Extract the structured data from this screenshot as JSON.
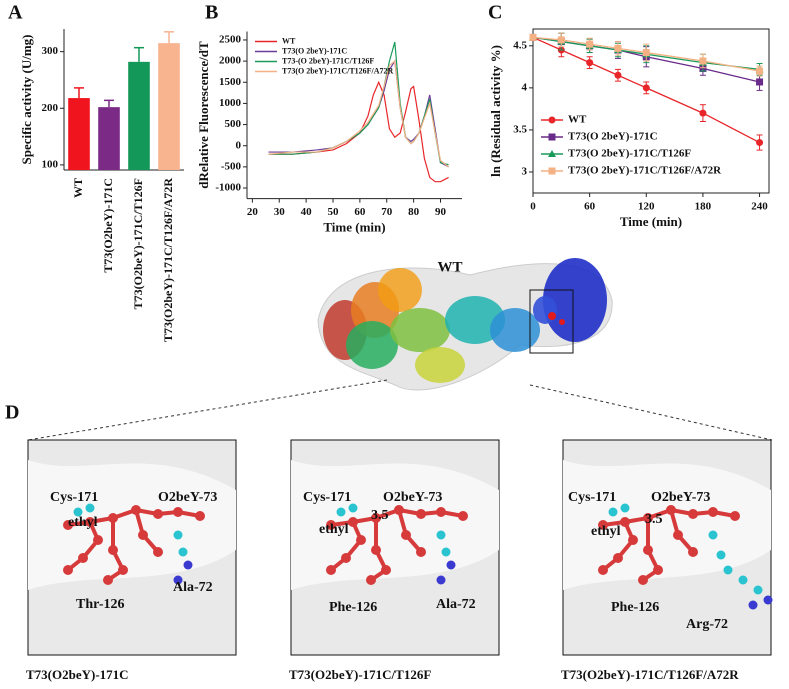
{
  "chart_data": [
    {
      "type": "bar",
      "panel": "A",
      "ylabel": "Specific activity (U/mg)",
      "categories": [
        "WT",
        "T73(O2beY)-171C",
        "T73(O2beY)-171C/T126F",
        "T73(O2beY)-171C/T126F/A72R"
      ],
      "values": [
        218,
        202,
        282,
        315
      ],
      "errors": [
        18,
        12,
        25,
        20
      ],
      "colors": [
        "#f0141e",
        "#7b2a86",
        "#14985a",
        "#f8b38f"
      ],
      "ylim": [
        91,
        340
      ],
      "yticks": [
        100,
        200,
        300
      ]
    },
    {
      "type": "line",
      "panel": "B",
      "xlabel": "Time (min)",
      "ylabel": "dRelative Fluorescence/dT",
      "x": [
        26,
        35,
        44,
        50,
        55,
        60,
        63,
        65,
        67,
        69,
        71,
        73,
        75,
        77,
        79,
        80,
        82,
        84,
        86,
        88,
        90,
        93
      ],
      "series": [
        {
          "name": "WT",
          "color": "#e8262a",
          "values": [
            -200,
            -200,
            -150,
            -100,
            50,
            300,
            700,
            1200,
            1500,
            1200,
            400,
            200,
            300,
            800,
            1350,
            1400,
            600,
            -300,
            -750,
            -850,
            -850,
            -750
          ]
        },
        {
          "name": "T73(O 2beY)-171C",
          "color": "#6a3d9a",
          "values": [
            -150,
            -150,
            -100,
            -50,
            100,
            300,
            500,
            700,
            900,
            1300,
            1800,
            2000,
            900,
            200,
            100,
            150,
            300,
            700,
            1200,
            400,
            -400,
            -500
          ]
        },
        {
          "name": "T73-(O 2beY)-171C/T126F",
          "color": "#1a9a5a",
          "values": [
            -200,
            -200,
            -150,
            -50,
            100,
            300,
            500,
            700,
            900,
            1400,
            2000,
            2450,
            1000,
            200,
            50,
            100,
            300,
            700,
            1100,
            300,
            -400,
            -450
          ]
        },
        {
          "name": "T73(O 2beY)-171C/T126F/A72R",
          "color": "#f4b183",
          "values": [
            -200,
            -150,
            -150,
            -50,
            100,
            350,
            550,
            750,
            950,
            1400,
            1900,
            2000,
            900,
            200,
            50,
            100,
            300,
            650,
            1000,
            300,
            -350,
            -500
          ]
        }
      ],
      "xlim": [
        18,
        98
      ],
      "xticks": [
        20,
        30,
        40,
        50,
        60,
        70,
        80,
        90
      ],
      "ylim": [
        -1250,
        2700
      ],
      "yticks": [
        -1000,
        -500,
        0,
        500,
        1000,
        1500,
        2000,
        2500
      ],
      "legend": "upper left"
    },
    {
      "type": "line",
      "panel": "C",
      "xlabel": "Time (min)",
      "ylabel": "ln (Residual activity %)",
      "x": [
        0,
        30,
        60,
        90,
        120,
        180,
        240
      ],
      "series": [
        {
          "name": "WT",
          "color": "#e8262a",
          "marker": "circle",
          "values": [
            4.6,
            4.45,
            4.3,
            4.15,
            4.0,
            3.7,
            3.35
          ],
          "errors": [
            0.03,
            0.08,
            0.07,
            0.07,
            0.07,
            0.1,
            0.09
          ]
        },
        {
          "name": "T73(O 2beY)-171C",
          "color": "#6a2a8a",
          "marker": "square",
          "values": [
            4.6,
            4.55,
            4.5,
            4.45,
            4.37,
            4.23,
            4.07
          ],
          "errors": [
            0.03,
            0.1,
            0.08,
            0.1,
            0.12,
            0.08,
            0.1
          ]
        },
        {
          "name": "T73(O 2beY)-171C/T126F",
          "color": "#1a9a5a",
          "marker": "triangle",
          "values": [
            4.6,
            4.55,
            4.5,
            4.45,
            4.4,
            4.3,
            4.22
          ],
          "errors": [
            0.03,
            0.1,
            0.08,
            0.08,
            0.1,
            0.1,
            0.07
          ]
        },
        {
          "name": "T73(O 2beY)-171C/T126F/A72R",
          "color": "#f4b183",
          "marker": "square",
          "values": [
            4.6,
            4.57,
            4.52,
            4.47,
            4.42,
            4.32,
            4.2
          ],
          "errors": [
            0.03,
            0.08,
            0.07,
            0.08,
            0.1,
            0.08,
            0.06
          ]
        }
      ],
      "xlim": [
        0,
        250
      ],
      "xticks": [
        0,
        60,
        120,
        180,
        240
      ],
      "ylim": [
        2.75,
        4.7
      ],
      "yticks": [
        3.0,
        3.5,
        4.0,
        4.5
      ],
      "frame": true,
      "legend": "lower left"
    }
  ],
  "structure": {
    "title": "WT"
  },
  "panel_d": {
    "label": "D",
    "panels": [
      {
        "labels": [
          "Cys-171",
          "O2beY-73",
          "ethyl",
          "Thr-126",
          "Ala-72"
        ],
        "caption": "T73(O2beY)-171C"
      },
      {
        "labels": [
          "Cys-171",
          "O2beY-73",
          "ethyl",
          "3.5",
          "Phe-126",
          "Ala-72"
        ],
        "caption": "T73(O2beY)-171C/T126F"
      },
      {
        "labels": [
          "Cys-171",
          "O2beY-73",
          "ethyl",
          "3.5",
          "Phe-126",
          "Arg-72"
        ],
        "caption": "T73(O2beY)-171C/T126F/A72R"
      }
    ]
  }
}
